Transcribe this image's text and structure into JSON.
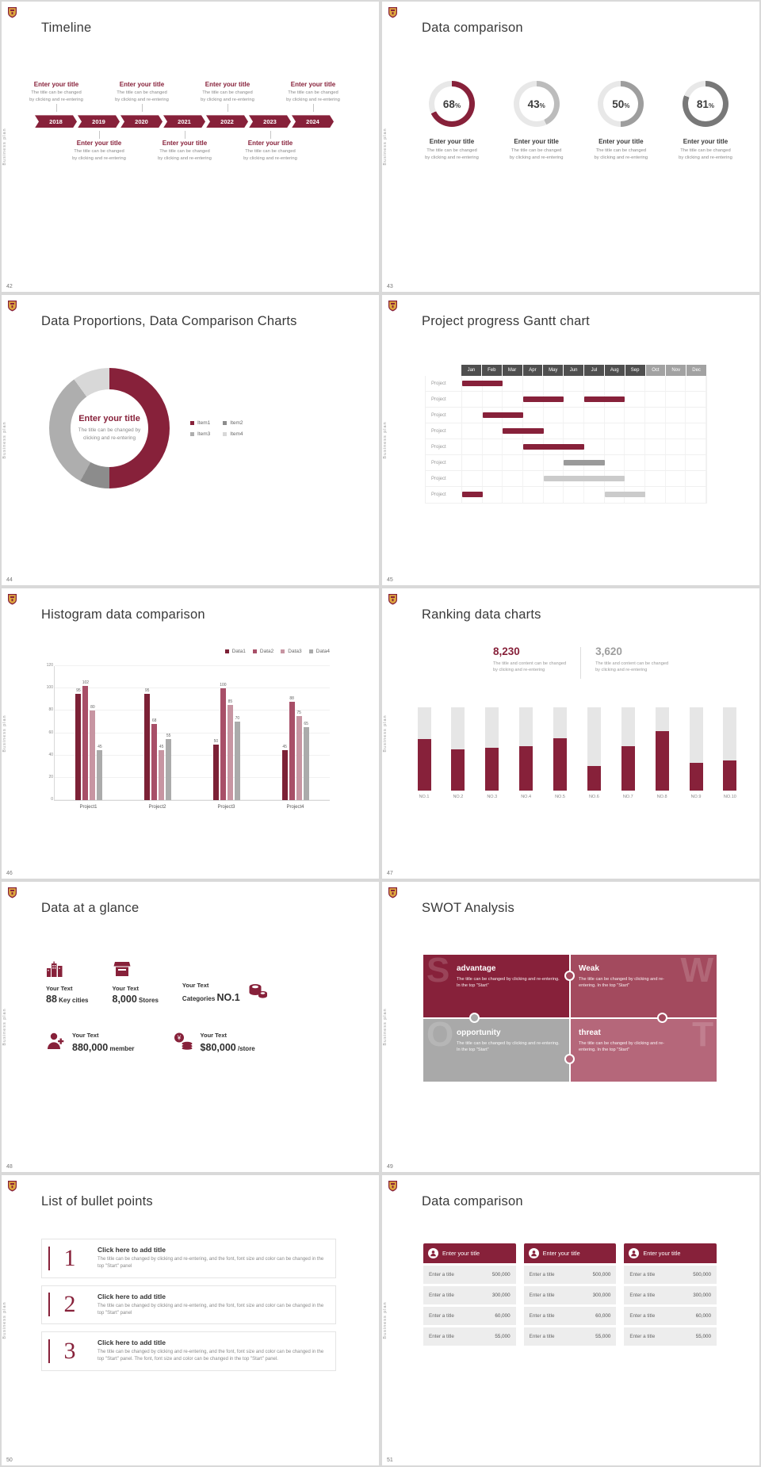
{
  "theme": {
    "accent": "#87213a",
    "accent_mid": "#a34a5e",
    "accent_soft": "#b5677a",
    "gray": "#a6a6a6",
    "page_bg": "#d9d9d9",
    "slide_bg": "#ffffff",
    "gold": "#e0a93f"
  },
  "common": {
    "side_label": "Business plan"
  },
  "chart_data": [
    {
      "name": "donut_rings",
      "type": "pie",
      "slide": "43",
      "track": "#e8e8e8",
      "rings": [
        {
          "percent": 68,
          "color": "#87213a"
        },
        {
          "percent": 43,
          "color": "#bcbcbc"
        },
        {
          "percent": 50,
          "color": "#9e9e9e"
        },
        {
          "percent": 81,
          "color": "#787878"
        }
      ]
    },
    {
      "name": "donut",
      "type": "pie",
      "slide": "44",
      "segments": [
        {
          "label": "Item1",
          "value": 50,
          "color": "#87213a"
        },
        {
          "label": "Item2",
          "value": 8,
          "color": "#8c8c8c"
        },
        {
          "label": "Item3",
          "value": 32,
          "color": "#aeaeae"
        },
        {
          "label": "Item4",
          "value": 10,
          "color": "#d8d8d8"
        }
      ]
    },
    {
      "name": "gantt",
      "type": "gantt",
      "slide": "45",
      "months": [
        "Jan",
        "Feb",
        "Mar",
        "Apr",
        "May",
        "Jun",
        "Jul",
        "Aug",
        "Sep",
        "Oct",
        "Nov",
        "Dec"
      ],
      "dark_month_count": 9,
      "row_label": "Project",
      "rows": [
        {
          "bars": [
            {
              "start": 0,
              "len": 2,
              "color": "#87213a"
            }
          ]
        },
        {
          "bars": [
            {
              "start": 3,
              "len": 2,
              "color": "#87213a"
            },
            {
              "start": 6,
              "len": 2,
              "color": "#87213a"
            }
          ]
        },
        {
          "bars": [
            {
              "start": 1,
              "len": 2,
              "color": "#87213a"
            }
          ]
        },
        {
          "bars": [
            {
              "start": 2,
              "len": 2,
              "color": "#87213a"
            }
          ]
        },
        {
          "bars": [
            {
              "start": 3,
              "len": 3,
              "color": "#87213a"
            }
          ]
        },
        {
          "bars": [
            {
              "start": 5,
              "len": 2,
              "color": "#9a9a9a"
            }
          ]
        },
        {
          "bars": [
            {
              "start": 4,
              "len": 4,
              "color": "#cbcbcb"
            }
          ]
        },
        {
          "bars": [
            {
              "start": 0,
              "len": 1,
              "color": "#87213a"
            },
            {
              "start": 7,
              "len": 2,
              "color": "#cbcbcb"
            }
          ]
        }
      ]
    },
    {
      "name": "histogram",
      "type": "bar",
      "slide": "46",
      "series": [
        "Data1",
        "Data2",
        "Data3",
        "Data4"
      ],
      "colors": [
        "#7c2136",
        "#a84f68",
        "#c795a2",
        "#ababab"
      ],
      "groups": [
        "Project1",
        "Project2",
        "Project3",
        "Project4"
      ],
      "values": [
        [
          95,
          102,
          80,
          45
        ],
        [
          95,
          68,
          45,
          55
        ],
        [
          50,
          100,
          85,
          70
        ],
        [
          45,
          88,
          75,
          65
        ]
      ],
      "y_ticks": [
        0,
        20,
        40,
        60,
        80,
        100,
        120
      ],
      "y_max": 120
    },
    {
      "name": "ranking",
      "type": "bar",
      "slide": "47",
      "labels": [
        "NO.1",
        "NO.2",
        "NO.3",
        "NO.4",
        "NO.5",
        "NO.6",
        "NO.7",
        "NO.8",
        "NO.9",
        "NO.10"
      ],
      "percents": [
        62,
        50,
        51,
        53,
        63,
        30,
        53,
        71,
        33,
        36
      ],
      "bar_color": "#87213a",
      "track_color": "#e6e6e6"
    }
  ],
  "slide_42": {
    "number": "42",
    "title": "Timeline",
    "years": [
      "2018",
      "2019",
      "2020",
      "2021",
      "2022",
      "2023",
      "2024"
    ],
    "item_title": "Enter your title",
    "item_line1": "The title can be changed",
    "item_line2": "by clicking and re-entering"
  },
  "slide_43": {
    "number": "43",
    "title": "Data comparison",
    "percent_suffix": "%",
    "item_title": "Enter your title",
    "item_line1": "The title can be changed",
    "item_line2": "by clicking and re-entering"
  },
  "slide_44": {
    "number": "44",
    "title": "Data Proportions, Data Comparison Charts",
    "center_title": "Enter your title",
    "center_line1": "The title can be changed by",
    "center_line2": "clicking and re-entering"
  },
  "slide_45": {
    "number": "45",
    "title": "Project progress Gantt chart"
  },
  "slide_46": {
    "number": "46",
    "title": "Histogram data comparison"
  },
  "slide_47": {
    "number": "47",
    "title": "Ranking data charts",
    "stat1": {
      "value": "8,230",
      "line1": "The title and content can be changed",
      "line2": "by clicking and re-entering"
    },
    "stat2": {
      "value": "3,620",
      "line1": "The title and content can be changed",
      "line2": "by clicking and re-entering"
    }
  },
  "slide_48": {
    "number": "48",
    "title": "Data at a glance",
    "items": [
      {
        "label": "Your Text",
        "big": "88",
        "small": "Key cities",
        "icon": "city-buildings-icon"
      },
      {
        "label": "Your Text",
        "big": "8,000",
        "small": "Stores",
        "icon": "store-icon"
      },
      {
        "label": "Your Text",
        "big": "NO.1",
        "small": "Categories",
        "icon": "category-rolls-icon"
      },
      {
        "label": "Your Text",
        "big": "880,000",
        "small": "member",
        "icon": "member-add-icon"
      },
      {
        "label": "Your Text",
        "big": "$80,000",
        "small": "/store",
        "icon": "money-coins-icon"
      }
    ]
  },
  "slide_49": {
    "number": "49",
    "title": "SWOT Analysis",
    "quadrants": [
      {
        "letter": "S",
        "heading": "advantage",
        "body": "The title can be changed by clicking and re-entering. In the top \"Start\"",
        "color": "#87213a"
      },
      {
        "letter": "W",
        "heading": "Weak",
        "body": "The title can be changed by clicking and re-entering. In the top \"Start\"",
        "color": "#a34a5e"
      },
      {
        "letter": "O",
        "heading": "opportunity",
        "body": "The title can be changed by clicking and re-entering. In the top \"Start\"",
        "color": "#a9a9a9"
      },
      {
        "letter": "T",
        "heading": "threat",
        "body": "The title can be changed by clicking and re-entering. In the top \"Start\"",
        "color": "#b5677a"
      }
    ]
  },
  "slide_50": {
    "number": "50",
    "title": "List of bullet points",
    "rows": [
      {
        "num": "1",
        "heading": "Click here to add title",
        "body": "The title can be changed by clicking and re-entering, and the font, font size and color can be changed in the top \"Start\" panel"
      },
      {
        "num": "2",
        "heading": "Click here to add title",
        "body": "The title can be changed by clicking and re-entering, and the font, font size and color can be changed in the top \"Start\" panel"
      },
      {
        "num": "3",
        "heading": "Click here to add title",
        "body": "The title can be changed by clicking and re-entering, and the font, font size and color can be changed in the top \"Start\" panel. The font, font size and color can be changed in the top \"Start\" panel."
      }
    ]
  },
  "slide_51": {
    "number": "51",
    "title": "Data comparison",
    "column_header": "Enter your title",
    "row_label": "Enter a title",
    "values": [
      "500,000",
      "300,000",
      "60,000",
      "55,000"
    ]
  }
}
